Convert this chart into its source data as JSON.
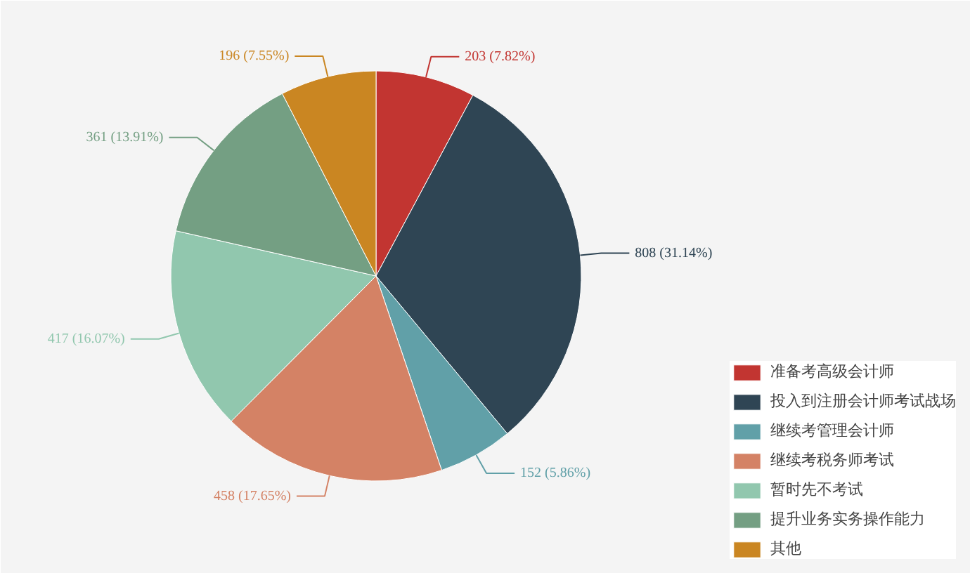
{
  "chart_data": {
    "type": "pie",
    "categories": [
      "准备考高级会计师",
      "投入到注册会计师考试战场",
      "继续考管理会计师",
      "继续考税务师考试",
      "暂时先不考试",
      "提升业务实务操作能力",
      "其他"
    ],
    "values": [
      203,
      808,
      152,
      458,
      417,
      361,
      196
    ],
    "colors": [
      "#c23531",
      "#2f4554",
      "#61a0a8",
      "#d48265",
      "#91c7ae",
      "#749f83",
      "#ca8622"
    ],
    "value_labels": [
      "203 (7.82%)",
      "808 (31.14%)",
      "152 (5.86%)",
      "458 (17.65%)",
      "417 (16.07%)",
      "361 (13.91%)",
      "196 (7.55%)"
    ],
    "legend": "bottom right"
  }
}
